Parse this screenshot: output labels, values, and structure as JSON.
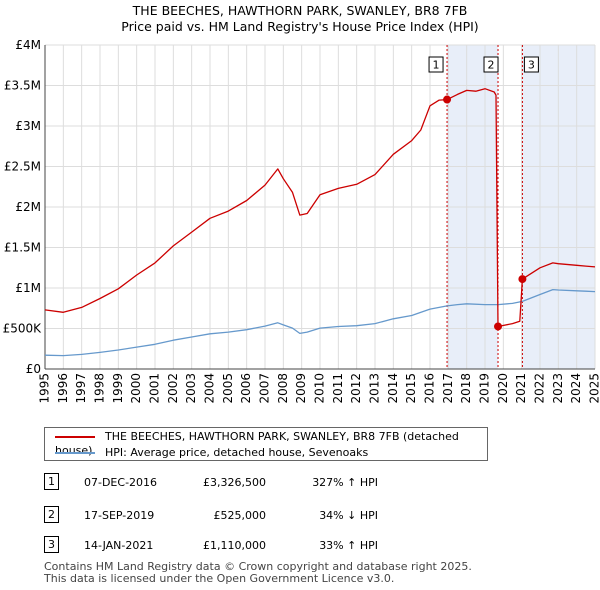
{
  "chart_data": {
    "type": "line",
    "title": "THE BEECHES, HAWTHORN PARK, SWANLEY, BR8 7FB",
    "subtitle": "Price paid vs. HM Land Registry's House Price Index (HPI)",
    "xlabel": "",
    "ylabel": "",
    "xlim": [
      1995,
      2025
    ],
    "ylim": [
      0,
      4000000
    ],
    "x_ticks": [
      "1995",
      "1996",
      "1997",
      "1998",
      "1999",
      "2000",
      "2001",
      "2002",
      "2003",
      "2004",
      "2005",
      "2006",
      "2007",
      "2008",
      "2009",
      "2010",
      "2011",
      "2012",
      "2013",
      "2014",
      "2015",
      "2016",
      "2017",
      "2018",
      "2019",
      "2020",
      "2021",
      "2022",
      "2023",
      "2024",
      "2025"
    ],
    "y_ticks": [
      {
        "value": 0,
        "label": "£0"
      },
      {
        "value": 500000,
        "label": "£500K"
      },
      {
        "value": 1000000,
        "label": "£1M"
      },
      {
        "value": 1500000,
        "label": "£1.5M"
      },
      {
        "value": 2000000,
        "label": "£2M"
      },
      {
        "value": 2500000,
        "label": "£2.5M"
      },
      {
        "value": 3000000,
        "label": "£3M"
      },
      {
        "value": 3500000,
        "label": "£3.5M"
      },
      {
        "value": 4000000,
        "label": "£4M"
      }
    ],
    "grid": true,
    "series": [
      {
        "name": "THE BEECHES, HAWTHORN PARK, SWANLEY, BR8 7FB (detached house)",
        "color": "#cc0000",
        "points": [
          [
            1995.0,
            730000
          ],
          [
            1996.0,
            700000
          ],
          [
            1997.0,
            760000
          ],
          [
            1998.0,
            870000
          ],
          [
            1999.0,
            990000
          ],
          [
            2000.0,
            1160000
          ],
          [
            2001.0,
            1310000
          ],
          [
            2002.0,
            1520000
          ],
          [
            2003.0,
            1690000
          ],
          [
            2004.0,
            1860000
          ],
          [
            2005.0,
            1950000
          ],
          [
            2006.0,
            2080000
          ],
          [
            2007.0,
            2270000
          ],
          [
            2007.7,
            2470000
          ],
          [
            2008.0,
            2350000
          ],
          [
            2008.5,
            2180000
          ],
          [
            2008.9,
            1900000
          ],
          [
            2009.3,
            1920000
          ],
          [
            2010.0,
            2150000
          ],
          [
            2011.0,
            2230000
          ],
          [
            2012.0,
            2280000
          ],
          [
            2013.0,
            2400000
          ],
          [
            2014.0,
            2650000
          ],
          [
            2015.0,
            2820000
          ],
          [
            2015.5,
            2950000
          ],
          [
            2016.0,
            3250000
          ],
          [
            2016.5,
            3320000
          ],
          [
            2016.93,
            3326500
          ],
          [
            2017.5,
            3390000
          ],
          [
            2018.0,
            3440000
          ],
          [
            2018.5,
            3430000
          ],
          [
            2019.0,
            3460000
          ],
          [
            2019.5,
            3420000
          ],
          [
            2019.6,
            3380000
          ],
          [
            2019.71,
            525000
          ],
          [
            2020.5,
            560000
          ],
          [
            2020.9,
            590000
          ],
          [
            2021.04,
            1110000
          ],
          [
            2022.0,
            1250000
          ],
          [
            2022.7,
            1310000
          ],
          [
            2023.0,
            1300000
          ],
          [
            2024.0,
            1280000
          ],
          [
            2024.5,
            1270000
          ],
          [
            2025.0,
            1260000
          ]
        ]
      },
      {
        "name": "HPI: Average price, detached house, Sevenoaks",
        "color": "#6699cc",
        "points": [
          [
            1995.0,
            170000
          ],
          [
            1996.0,
            165000
          ],
          [
            1997.0,
            180000
          ],
          [
            1998.0,
            205000
          ],
          [
            1999.0,
            235000
          ],
          [
            2000.0,
            270000
          ],
          [
            2001.0,
            305000
          ],
          [
            2002.0,
            355000
          ],
          [
            2003.0,
            395000
          ],
          [
            2004.0,
            435000
          ],
          [
            2005.0,
            455000
          ],
          [
            2006.0,
            485000
          ],
          [
            2007.0,
            530000
          ],
          [
            2007.7,
            570000
          ],
          [
            2008.0,
            545000
          ],
          [
            2008.5,
            505000
          ],
          [
            2008.9,
            440000
          ],
          [
            2009.3,
            455000
          ],
          [
            2010.0,
            505000
          ],
          [
            2011.0,
            525000
          ],
          [
            2012.0,
            535000
          ],
          [
            2013.0,
            560000
          ],
          [
            2014.0,
            620000
          ],
          [
            2015.0,
            660000
          ],
          [
            2016.0,
            740000
          ],
          [
            2016.93,
            779000
          ],
          [
            2017.5,
            795000
          ],
          [
            2018.0,
            805000
          ],
          [
            2019.0,
            795000
          ],
          [
            2019.71,
            795000
          ],
          [
            2020.5,
            810000
          ],
          [
            2021.04,
            834000
          ],
          [
            2022.0,
            920000
          ],
          [
            2022.7,
            980000
          ],
          [
            2023.0,
            975000
          ],
          [
            2024.0,
            965000
          ],
          [
            2024.5,
            960000
          ],
          [
            2025.0,
            955000
          ]
        ]
      }
    ],
    "transactions": [
      {
        "num": "1",
        "date": "07-DEC-2016",
        "price": "£3,326,500",
        "hpi": "327% ↑ HPI",
        "x": 2016.93,
        "y": 3326500
      },
      {
        "num": "2",
        "date": "17-SEP-2019",
        "price": "£525,000",
        "hpi": "34% ↓ HPI",
        "x": 2019.71,
        "y": 525000
      },
      {
        "num": "3",
        "date": "14-JAN-2021",
        "price": "£1,110,000",
        "hpi": "33% ↑ HPI",
        "x": 2021.04,
        "y": 1110000
      }
    ],
    "shaded_ranges": [
      [
        2016.93,
        2019.71
      ],
      [
        2021.04,
        2025.0
      ]
    ]
  },
  "legend": {
    "property_label": "THE BEECHES, HAWTHORN PARK, SWANLEY, BR8 7FB (detached house)",
    "hpi_label": "HPI: Average price, detached house, Sevenoaks",
    "property_color": "#cc0000",
    "hpi_color": "#6699cc"
  },
  "footer": {
    "line1": "Contains HM Land Registry data © Crown copyright and database right 2025.",
    "line2": "This data is licensed under the Open Government Licence v3.0."
  }
}
